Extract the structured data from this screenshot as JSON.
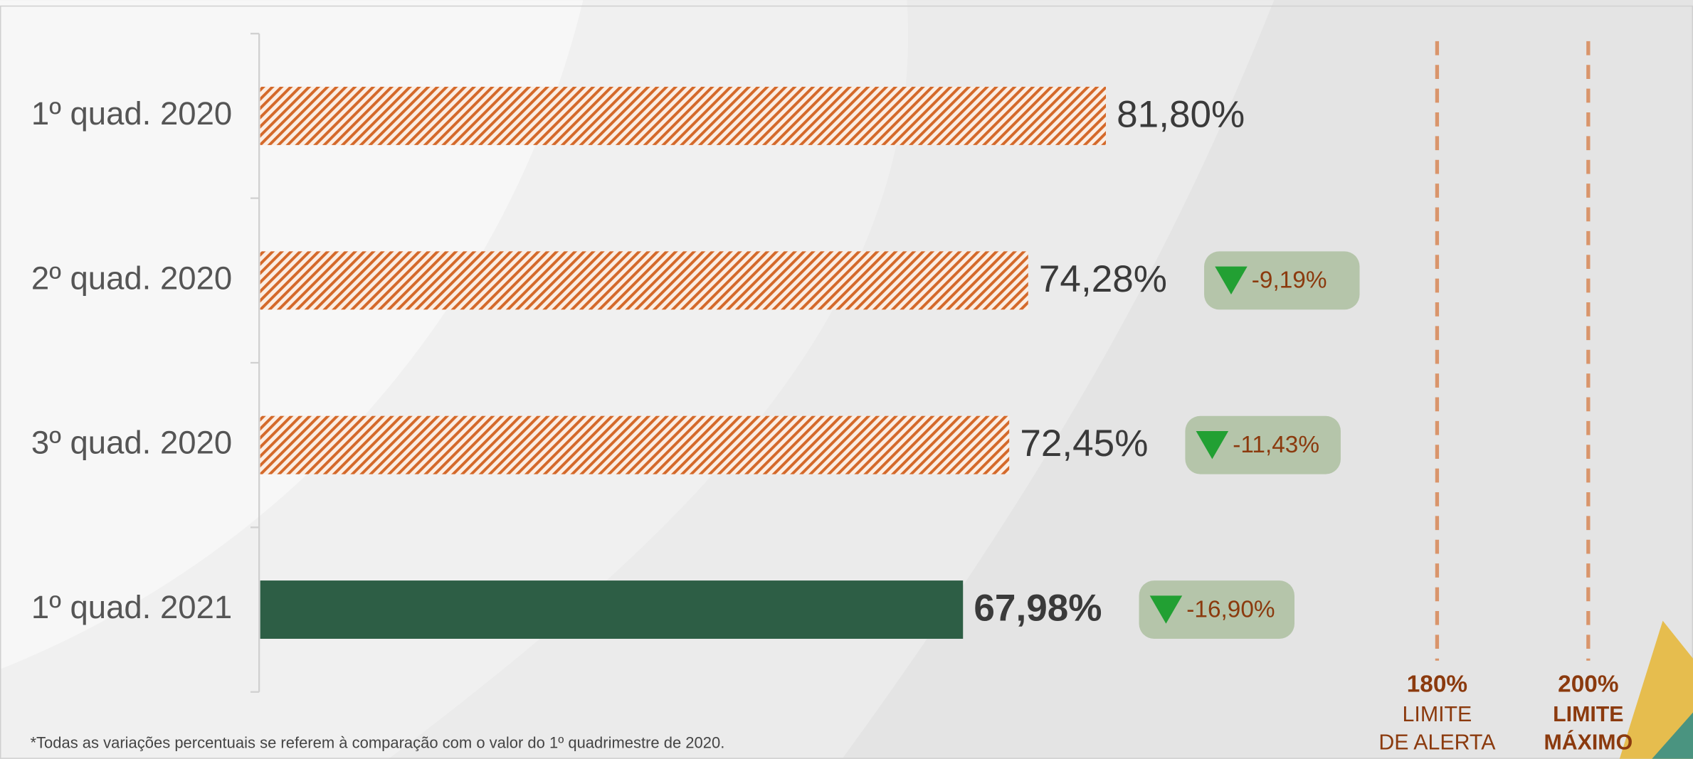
{
  "chart_data": {
    "type": "hbar",
    "categories": [
      "1º quad. 2020",
      "2º quad. 2020",
      "3º quad. 2020",
      "1º quad. 2021"
    ],
    "values": [
      81.8,
      74.28,
      72.45,
      67.98
    ],
    "value_labels": [
      "81,80%",
      "74,28%",
      "72,45%",
      "67,98%"
    ],
    "colors": [
      "#d4692a",
      "#d4692a",
      "#d4692a",
      "#2d5e45"
    ],
    "hatched": [
      true,
      true,
      true,
      false
    ],
    "change_labels": [
      null,
      "-9,19%",
      "-11,43%",
      "-16,90%"
    ],
    "reference_lines": [
      {
        "label": "180%",
        "text": [
          "LIMITE",
          "DE ALERTA"
        ],
        "bold_text": false
      },
      {
        "label": "200%",
        "text": [
          "LIMITE",
          "MÁXIMO"
        ],
        "bold_text": true
      }
    ],
    "footnote": "*Todas as variações percentuais se referem à comparação com o valor do 1º quadrimestre de 2020."
  }
}
